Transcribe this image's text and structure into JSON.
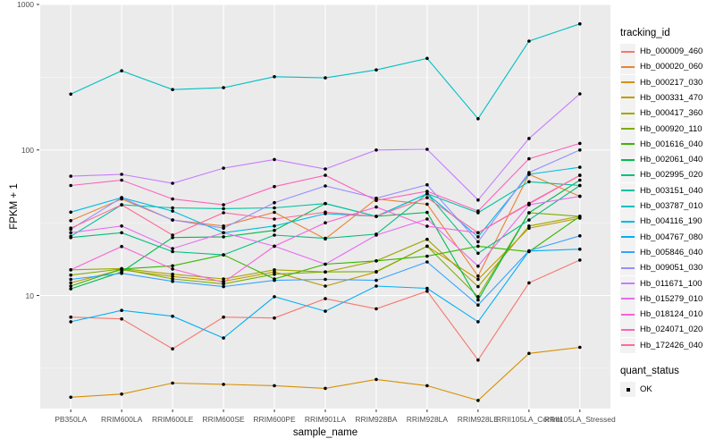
{
  "figure": {
    "background": "#FFFFFF",
    "panel_background": "#EBEBEB",
    "grid_color": "#FFFFFF",
    "tick_label_color": "#4D4D4D",
    "point_color": "#000000"
  },
  "axes": {
    "x": {
      "label": "sample_name"
    },
    "y": {
      "label": "FPKM + 1",
      "scale": "log10",
      "tick_labels": [
        "10",
        "100",
        "1000"
      ],
      "tick_values": [
        10,
        100,
        1000
      ]
    }
  },
  "legend": {
    "tracking_title": "tracking_id",
    "quant_title": "quant_status",
    "quant_items": [
      {
        "label": "OK",
        "symbol": "black-square"
      }
    ]
  },
  "chart_data": {
    "type": "line",
    "title": "",
    "xlabel": "sample_name",
    "ylabel": "FPKM + 1",
    "x_type": "categorical",
    "y_scale": "log10",
    "ylim": [
      1.6,
      1000
    ],
    "grid": true,
    "legend_position": "right",
    "y_major_gridlines": [
      10,
      100,
      1000
    ],
    "y_minor_gridlines": [
      3.162,
      31.62,
      316.2
    ],
    "categories": [
      "PB350LA",
      "RRIM600LA",
      "RRIM600LE",
      "RRIM600SE",
      "RRIM600PE",
      "RRIM901LA",
      "RRIM928BA",
      "RRIM928LA",
      "RRIM928LE",
      "RRII105LA_Control",
      "RRII105LA_Stressed"
    ],
    "series": [
      {
        "name": "Hb_000009_460",
        "color": "#F8766D",
        "values": [
          7.1,
          6.9,
          4.3,
          7.1,
          7.0,
          9.5,
          8.1,
          10.7,
          3.6,
          12.2,
          17.5
        ]
      },
      {
        "name": "Hb_000020_060",
        "color": "#EA8331",
        "values": [
          32.7,
          46,
          33,
          30,
          37.3,
          24.5,
          46,
          42.4,
          13.6,
          68,
          48
        ]
      },
      {
        "name": "Hb_000217_030",
        "color": "#D89000",
        "values": [
          2.0,
          2.1,
          2.5,
          2.45,
          2.4,
          2.3,
          2.65,
          2.4,
          1.9,
          4.0,
          4.4
        ]
      },
      {
        "name": "Hb_000331_470",
        "color": "#C09B00",
        "values": [
          12.2,
          15.0,
          13.5,
          12.5,
          14.5,
          11.6,
          14.5,
          21.8,
          12.9,
          29,
          34
        ]
      },
      {
        "name": "Hb_000417_360",
        "color": "#A3A500",
        "values": [
          15.0,
          15.3,
          14.0,
          13.0,
          15.0,
          14.5,
          17.3,
          24.3,
          11.5,
          30,
          35
        ]
      },
      {
        "name": "Hb_000920_110",
        "color": "#7CAE00",
        "values": [
          13.8,
          15.2,
          13.0,
          12.0,
          14.0,
          14.5,
          14.6,
          21.8,
          9.8,
          37,
          35
        ]
      },
      {
        "name": "Hb_001616_040",
        "color": "#39B600",
        "values": [
          11.6,
          15.2,
          16,
          19,
          13,
          16.4,
          17.3,
          18.6,
          21.8,
          20,
          35
        ]
      },
      {
        "name": "Hb_002061_040",
        "color": "#00BB4E",
        "values": [
          11.1,
          14.5,
          25,
          25.3,
          28,
          42.8,
          35,
          37.2,
          9.3,
          37,
          62
        ]
      },
      {
        "name": "Hb_002995_020",
        "color": "#00BF7D",
        "values": [
          25,
          27,
          20,
          19,
          26,
          24.7,
          26.4,
          50,
          19.5,
          33,
          57
        ]
      },
      {
        "name": "Hb_003151_040",
        "color": "#00C1A3",
        "values": [
          25.5,
          42,
          40,
          39.5,
          40,
          42.8,
          35,
          50,
          37,
          60.5,
          57
        ]
      },
      {
        "name": "Hb_003787_010",
        "color": "#00BFC4",
        "values": [
          242,
          350,
          260,
          268,
          319,
          313,
          355,
          426,
          164,
          560,
          736
        ]
      },
      {
        "name": "Hb_004116_190",
        "color": "#00BAE0",
        "values": [
          37.4,
          47,
          38,
          27,
          30,
          36.5,
          35,
          50,
          25.3,
          68,
          76
        ]
      },
      {
        "name": "Hb_004767_080",
        "color": "#00B0F6",
        "values": [
          6.6,
          7.9,
          7.2,
          5.1,
          9.8,
          7.8,
          11.6,
          11.2,
          6.6,
          20.2,
          20.8
        ]
      },
      {
        "name": "Hb_005846_040",
        "color": "#35A2FF",
        "values": [
          12.9,
          14.2,
          12.5,
          11.5,
          12.7,
          12.9,
          12.7,
          17.0,
          8.6,
          20.3,
          25.7
        ]
      },
      {
        "name": "Hb_009051_030",
        "color": "#9590FF",
        "values": [
          28.5,
          47,
          33,
          29,
          43.4,
          56.6,
          46.6,
          57.6,
          23.4,
          70,
          100
        ]
      },
      {
        "name": "Hb_011671_100",
        "color": "#C77CFF",
        "values": [
          66,
          68,
          59,
          75,
          86,
          74,
          100,
          101,
          45.3,
          120,
          243
        ]
      },
      {
        "name": "Hb_015279_010",
        "color": "#E76BF3",
        "values": [
          27,
          30,
          21,
          27,
          21.8,
          16.4,
          26,
          33.5,
          15.9,
          42,
          48
        ]
      },
      {
        "name": "Hb_018124_010",
        "color": "#FA62DB",
        "values": [
          15,
          21.7,
          15.2,
          12.3,
          21.8,
          31.6,
          40.5,
          29.9,
          27,
          42.5,
          67
        ]
      },
      {
        "name": "Hb_024071_020",
        "color": "#FF62BC",
        "values": [
          57,
          62,
          46,
          42,
          56,
          67,
          45,
          52,
          38,
          87,
          111
        ]
      },
      {
        "name": "Hb_172426_040",
        "color": "#FF6A98",
        "values": [
          29,
          42,
          26,
          37,
          33.5,
          37.4,
          35,
          47,
          27,
          43,
          67
        ]
      }
    ]
  }
}
